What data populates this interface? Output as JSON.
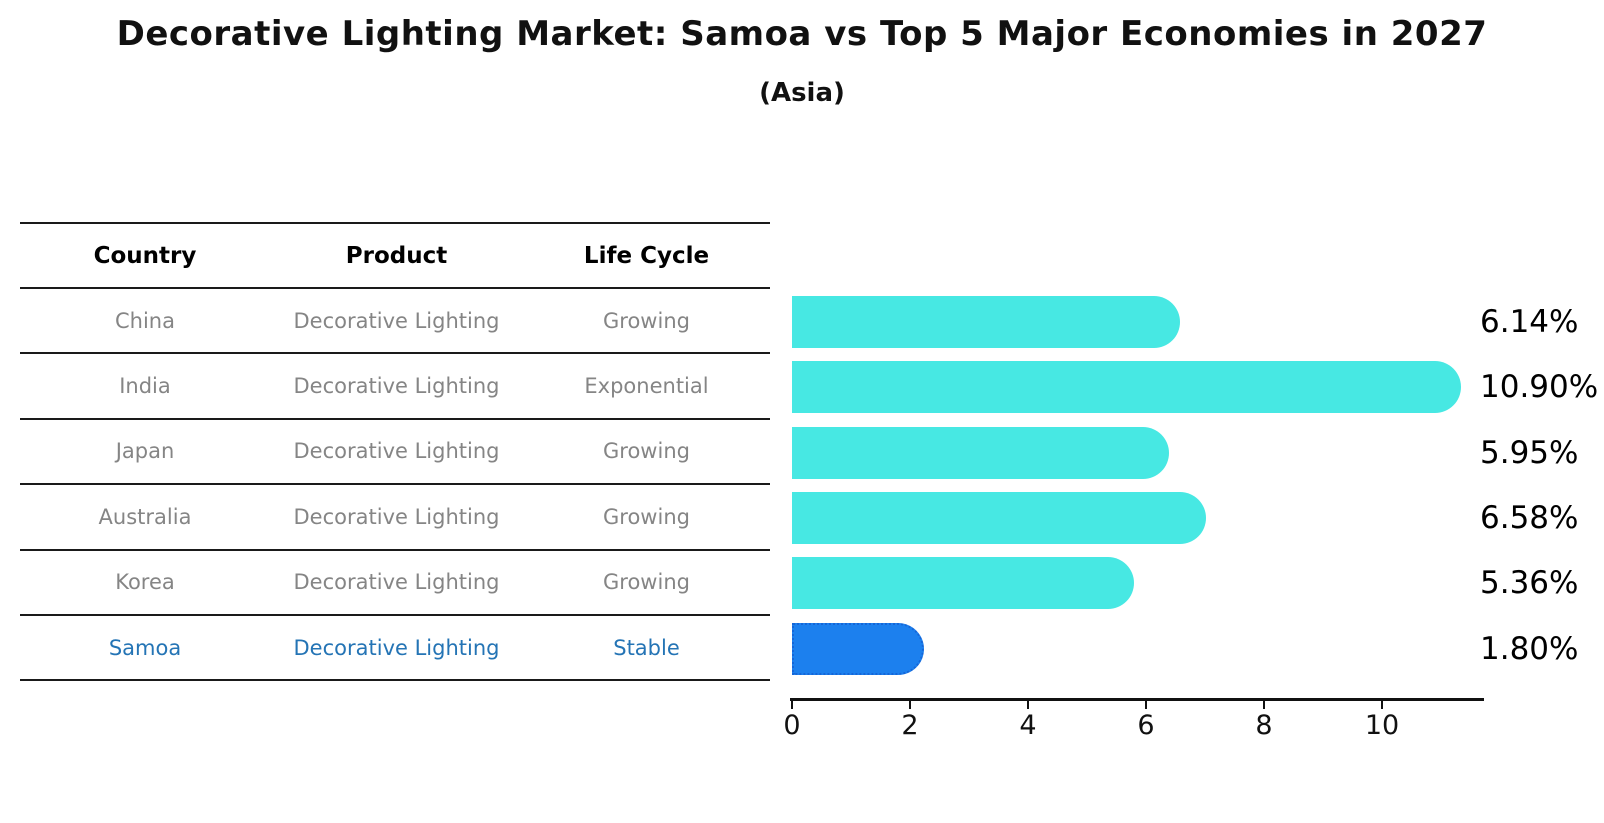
{
  "title": "Decorative Lighting Market: Samoa vs Top 5 Major Economies in 2027",
  "subtitle": "(Asia)",
  "table": {
    "headers": [
      "Country",
      "Product",
      "Life Cycle"
    ],
    "rows": [
      {
        "country": "China",
        "product": "Decorative Lighting",
        "life_cycle": "Growing",
        "highlight": false
      },
      {
        "country": "India",
        "product": "Decorative Lighting",
        "life_cycle": "Exponential",
        "highlight": false
      },
      {
        "country": "Japan",
        "product": "Decorative Lighting",
        "life_cycle": "Growing",
        "highlight": false
      },
      {
        "country": "Australia",
        "product": "Decorative Lighting",
        "life_cycle": "Growing",
        "highlight": false
      },
      {
        "country": "Korea",
        "product": "Decorative Lighting",
        "life_cycle": "Growing",
        "highlight": false
      },
      {
        "country": "Samoa",
        "product": "Decorative Lighting",
        "life_cycle": "Stable",
        "highlight": true
      }
    ]
  },
  "chart_data": {
    "type": "bar",
    "orientation": "horizontal",
    "title": "Decorative Lighting Market: Samoa vs Top 5 Major Economies in 2027",
    "subtitle": "(Asia)",
    "categories": [
      "China",
      "India",
      "Japan",
      "Australia",
      "Korea",
      "Samoa"
    ],
    "values": [
      6.14,
      10.9,
      5.95,
      6.58,
      5.36,
      1.8
    ],
    "value_labels": [
      "6.14%",
      "10.90%",
      "5.95%",
      "6.58%",
      "5.36%",
      "1.80%"
    ],
    "x_ticks": [
      0,
      2,
      4,
      6,
      8,
      10
    ],
    "xlim": [
      0,
      11.7
    ],
    "grid": false,
    "legend": false,
    "highlight_index": 5,
    "bar_color": "#47e8e3",
    "highlight_bar_color": "#1c80ee",
    "highlight_border_color": "#1566d8"
  },
  "colors": {
    "title_text": "#111111",
    "table_text": "#858585",
    "header_text": "#000000",
    "highlight_text": "#2474b5",
    "axis": "#111111",
    "value_label_text": "#000000"
  }
}
